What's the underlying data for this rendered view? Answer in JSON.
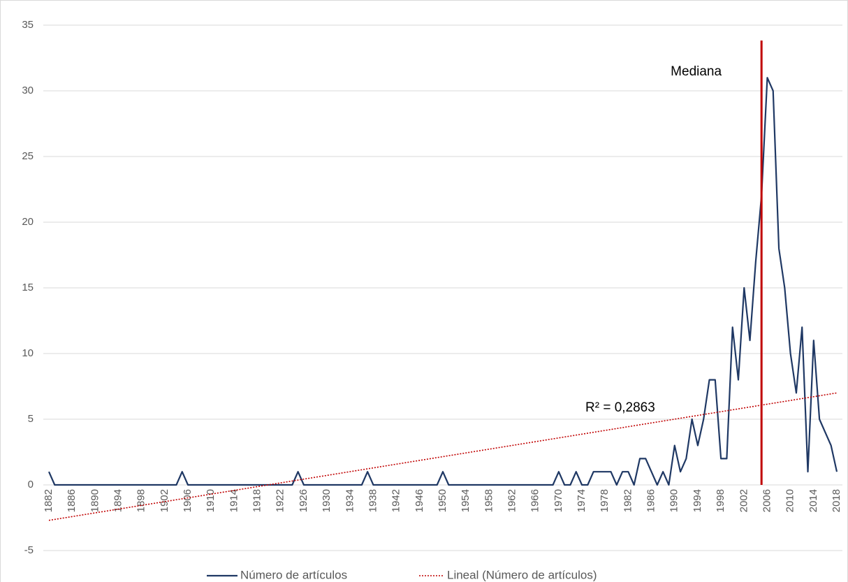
{
  "chart_data": {
    "type": "line",
    "x": [
      1882,
      1883,
      1884,
      1885,
      1886,
      1887,
      1888,
      1889,
      1890,
      1891,
      1892,
      1893,
      1894,
      1895,
      1896,
      1897,
      1898,
      1899,
      1900,
      1901,
      1902,
      1903,
      1904,
      1905,
      1906,
      1907,
      1908,
      1909,
      1910,
      1911,
      1912,
      1913,
      1914,
      1915,
      1916,
      1917,
      1918,
      1919,
      1920,
      1921,
      1922,
      1923,
      1924,
      1925,
      1926,
      1927,
      1928,
      1929,
      1930,
      1931,
      1932,
      1933,
      1934,
      1935,
      1936,
      1937,
      1938,
      1939,
      1940,
      1941,
      1942,
      1943,
      1944,
      1945,
      1946,
      1947,
      1948,
      1949,
      1950,
      1951,
      1952,
      1953,
      1954,
      1955,
      1956,
      1957,
      1958,
      1959,
      1960,
      1961,
      1962,
      1963,
      1964,
      1965,
      1966,
      1967,
      1968,
      1969,
      1970,
      1971,
      1972,
      1973,
      1974,
      1975,
      1976,
      1977,
      1978,
      1979,
      1980,
      1981,
      1982,
      1983,
      1984,
      1985,
      1986,
      1987,
      1988,
      1989,
      1990,
      1991,
      1992,
      1993,
      1994,
      1995,
      1996,
      1997,
      1998,
      1999,
      2000,
      2001,
      2002,
      2003,
      2004,
      2005,
      2006,
      2007,
      2008,
      2009,
      2010,
      2011,
      2012,
      2013,
      2014,
      2015,
      2016,
      2017,
      2018
    ],
    "series": [
      {
        "name": "Número de artículos",
        "color": "#1f3864",
        "values": [
          1,
          0,
          0,
          0,
          0,
          0,
          0,
          0,
          0,
          0,
          0,
          0,
          0,
          0,
          0,
          0,
          0,
          0,
          0,
          0,
          0,
          0,
          0,
          1,
          0,
          0,
          0,
          0,
          0,
          0,
          0,
          0,
          0,
          0,
          0,
          0,
          0,
          0,
          0,
          0,
          0,
          0,
          0,
          1,
          0,
          0,
          0,
          0,
          0,
          0,
          0,
          0,
          0,
          0,
          0,
          1,
          0,
          0,
          0,
          0,
          0,
          0,
          0,
          0,
          0,
          0,
          0,
          0,
          1,
          0,
          0,
          0,
          0,
          0,
          0,
          0,
          0,
          0,
          0,
          0,
          0,
          0,
          0,
          0,
          0,
          0,
          0,
          0,
          1,
          0,
          0,
          1,
          0,
          0,
          1,
          1,
          1,
          1,
          0,
          1,
          1,
          0,
          2,
          2,
          1,
          0,
          1,
          0,
          3,
          1,
          2,
          5,
          3,
          5,
          8,
          8,
          2,
          2,
          12,
          8,
          15,
          11,
          17,
          22,
          31,
          30,
          18,
          15,
          10,
          7,
          12,
          1,
          11,
          5,
          4,
          3,
          1
        ]
      }
    ],
    "trendline": {
      "name": "Lineal (Número de artículos)",
      "color": "#c00000",
      "x": [
        1882,
        2018
      ],
      "values": [
        -2.7,
        7
      ],
      "annotation": "R² = 0,2863"
    },
    "median": {
      "label": "Mediana",
      "x": 2005,
      "color": "#c00000"
    },
    "xlim": [
      1882,
      2018
    ],
    "xticks": [
      1882,
      1886,
      1890,
      1894,
      1898,
      1902,
      1906,
      1910,
      1914,
      1918,
      1922,
      1926,
      1930,
      1934,
      1938,
      1942,
      1946,
      1950,
      1954,
      1958,
      1962,
      1966,
      1970,
      1974,
      1978,
      1982,
      1986,
      1990,
      1994,
      1998,
      2002,
      2006,
      2010,
      2014,
      2018
    ],
    "ylim": [
      -5,
      35
    ],
    "yticks": [
      -5,
      0,
      5,
      10,
      15,
      20,
      25,
      30,
      35
    ],
    "grid": true,
    "legend": "bottom"
  }
}
